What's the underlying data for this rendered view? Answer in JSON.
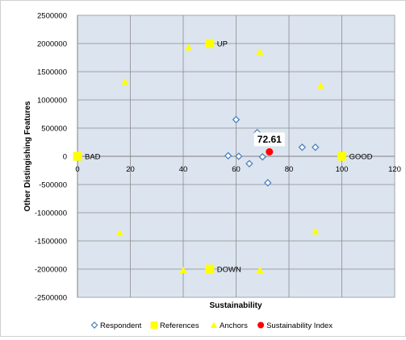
{
  "chart_data": {
    "type": "scatter",
    "title": "",
    "xlabel": "Sustainability",
    "ylabel": "Other Distingishing Features",
    "xlim": [
      0,
      120
    ],
    "ylim": [
      -2500000,
      2500000
    ],
    "x_ticks": [
      0,
      20,
      40,
      60,
      80,
      100,
      120
    ],
    "y_ticks": [
      2500000,
      2000000,
      1500000,
      1000000,
      500000,
      0,
      -500000,
      -1000000,
      -1500000,
      -2000000,
      -2500000
    ],
    "x_tick_labels": [
      "0",
      "20",
      "40",
      "60",
      "80",
      "100",
      "120"
    ],
    "y_tick_labels": [
      "2500000",
      "2000000",
      "1500000",
      "1000000",
      "500000",
      "0",
      "-500000",
      "-1000000",
      "-1500000",
      "-2000000",
      "-2500000"
    ],
    "grid": true,
    "legend_position": "bottom",
    "colors": {
      "plot_bg": "#dbe4ef",
      "grid": "#8c8c8c",
      "respondent": "#4f81bd",
      "references": "#ffff00",
      "anchors": "#ffff00",
      "index": "#ff0000"
    },
    "series": [
      {
        "name": "Respondent",
        "marker": "diamond",
        "points": [
          {
            "x": 60,
            "y": 650000
          },
          {
            "x": 68,
            "y": 420000
          },
          {
            "x": 57,
            "y": 10000
          },
          {
            "x": 61,
            "y": 0
          },
          {
            "x": 70,
            "y": -10000
          },
          {
            "x": 65,
            "y": -130000
          },
          {
            "x": 72,
            "y": -470000
          },
          {
            "x": 85,
            "y": 160000
          },
          {
            "x": 90,
            "y": 160000
          }
        ]
      },
      {
        "name": "References",
        "marker": "square",
        "points": [
          {
            "x": 0,
            "y": 0,
            "label": "BAD"
          },
          {
            "x": 100,
            "y": 0,
            "label": "GOOD"
          },
          {
            "x": 50,
            "y": 2000000,
            "label": "UP"
          },
          {
            "x": 50,
            "y": -2000000,
            "label": "DOWN"
          }
        ]
      },
      {
        "name": "Anchors",
        "marker": "triangle",
        "points": [
          {
            "x": 42,
            "y": 1930000
          },
          {
            "x": 69,
            "y": 1850000
          },
          {
            "x": 18,
            "y": 1320000
          },
          {
            "x": 92,
            "y": 1250000
          },
          {
            "x": 16,
            "y": -1360000
          },
          {
            "x": 90,
            "y": -1330000
          },
          {
            "x": 40,
            "y": -2020000
          },
          {
            "x": 69,
            "y": -2020000
          }
        ]
      },
      {
        "name": "Sustainability Index",
        "marker": "circle",
        "points": [
          {
            "x": 72.61,
            "y": 80000,
            "label": "72.61"
          }
        ]
      }
    ]
  }
}
